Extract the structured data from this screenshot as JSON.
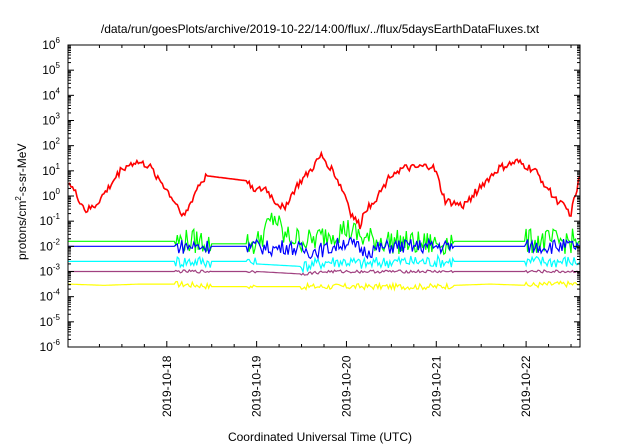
{
  "chart_data": {
    "type": "line",
    "title": "/data/run/goesPlots/archive/2019-10-22/14:00/flux/../flux/5daysEarthDataFluxes.txt",
    "xlabel": "Coordinated Universal Time (UTC)",
    "ylabel": "protons/cm²-s-sr-MeV",
    "ylabel_parts": [
      "protons/cm",
      "2",
      "-s-sr-MeV"
    ],
    "yscale": "log",
    "ylim_exponent": [
      -6,
      6
    ],
    "ytick_base": "10",
    "ytick_exponents": [
      "-6",
      "-5",
      "-4",
      "-3",
      "-2",
      "-1",
      "0",
      "1",
      "2",
      "3",
      "4",
      "5",
      "6"
    ],
    "xlim_days": [
      16.9,
      22.6
    ],
    "xticks": [
      {
        "label": "2019-10-18",
        "day": 18
      },
      {
        "label": "2019-10-19",
        "day": 19
      },
      {
        "label": "2019-10-20",
        "day": 20
      },
      {
        "label": "2019-10-21",
        "day": 21
      },
      {
        "label": "2019-10-22",
        "day": 22
      }
    ],
    "grid": false,
    "series": [
      {
        "color": "#ffff00",
        "x": [
          16.9,
          17.3,
          17.7,
          18.1,
          18.4,
          18.5,
          18.9,
          19.0,
          19.5,
          19.8,
          20.0,
          20.2,
          20.5,
          20.8,
          21.0,
          21.2,
          21.6,
          22.0,
          22.3,
          22.6
        ],
        "y": [
          -3.5,
          -3.55,
          -3.5,
          -3.5,
          -3.55,
          -3.6,
          -3.6,
          -3.6,
          -3.6,
          -3.6,
          -3.6,
          -3.6,
          -3.6,
          -3.6,
          -3.6,
          -3.55,
          -3.5,
          -3.55,
          -3.5,
          -3.5
        ]
      },
      {
        "color": "#00ffff",
        "x": [
          16.9,
          17.3,
          17.7,
          18.1,
          18.4,
          18.5,
          18.9,
          19.0,
          19.5,
          19.8,
          20.0,
          20.2,
          20.5,
          20.8,
          21.0,
          21.2,
          21.6,
          22.0,
          22.3,
          22.6
        ],
        "y": [
          -2.6,
          -2.6,
          -2.6,
          -2.6,
          -2.6,
          -2.6,
          -2.6,
          -2.7,
          -2.8,
          -2.6,
          -2.6,
          -2.7,
          -2.6,
          -2.6,
          -2.6,
          -2.6,
          -2.6,
          -2.6,
          -2.6,
          -2.6
        ]
      },
      {
        "color": "#00ff00",
        "x": [
          16.9,
          17.3,
          17.7,
          18.1,
          18.4,
          18.5,
          18.9,
          19.0,
          19.2,
          19.3,
          19.6,
          19.8,
          20.0,
          20.2,
          20.5,
          20.8,
          21.0,
          21.2,
          21.6,
          22.0,
          22.3,
          22.6
        ],
        "y": [
          -1.8,
          -1.8,
          -1.8,
          -1.8,
          -1.8,
          -1.9,
          -1.9,
          -1.9,
          -0.8,
          -1.6,
          -1.8,
          -1.5,
          -1.3,
          -1.7,
          -1.8,
          -1.9,
          -1.9,
          -1.8,
          -1.8,
          -1.8,
          -1.8,
          -1.8
        ]
      },
      {
        "color": "#0000ff",
        "x": [
          16.9,
          17.3,
          17.7,
          18.1,
          18.4,
          18.5,
          18.9,
          19.0,
          19.2,
          19.3,
          19.6,
          19.8,
          20.0,
          20.2,
          20.5,
          20.8,
          21.0,
          21.2,
          21.6,
          22.0,
          22.3,
          22.6
        ],
        "y": [
          -2.0,
          -2.0,
          -2.0,
          -2.0,
          -2.0,
          -2.0,
          -2.0,
          -2.0,
          -2.1,
          -2.0,
          -2.2,
          -2.1,
          -1.8,
          -2.2,
          -2.0,
          -2.0,
          -2.0,
          -2.0,
          -2.0,
          -2.0,
          -2.0,
          -2.0
        ]
      },
      {
        "color": "#a04080",
        "x": [
          16.9,
          17.3,
          17.7,
          18.1,
          18.4,
          18.5,
          18.9,
          19.0,
          19.5,
          19.8,
          20.0,
          20.2,
          20.5,
          20.8,
          21.0,
          21.2,
          21.6,
          22.0,
          22.3,
          22.6
        ],
        "y": [
          -3.0,
          -3.0,
          -3.0,
          -3.0,
          -3.0,
          -3.0,
          -3.0,
          -3.0,
          -3.1,
          -3.0,
          -3.0,
          -3.0,
          -3.0,
          -3.0,
          -3.0,
          -3.0,
          -3.0,
          -3.0,
          -3.0,
          -3.0
        ]
      },
      {
        "color": "#ff0000",
        "x": [
          16.9,
          17.0,
          17.1,
          17.2,
          17.35,
          17.5,
          17.65,
          17.8,
          17.95,
          18.1,
          18.2,
          18.25,
          18.35,
          18.45,
          18.9,
          19.0,
          19.1,
          19.2,
          19.3,
          19.45,
          19.6,
          19.72,
          19.85,
          20.0,
          20.05,
          20.15,
          20.2,
          20.35,
          20.5,
          20.65,
          20.75,
          20.95,
          21.0,
          21.05,
          21.1,
          21.2,
          21.3,
          21.5,
          21.7,
          21.9,
          22.1,
          22.3,
          22.5,
          22.6
        ],
        "y": [
          0.6,
          0.0,
          -0.6,
          -0.4,
          0.3,
          1.1,
          1.35,
          1.2,
          0.5,
          -0.3,
          -0.8,
          -0.4,
          0.4,
          0.8,
          0.6,
          0.2,
          0.3,
          -0.2,
          -0.5,
          0.4,
          1.0,
          1.6,
          1.0,
          -0.1,
          -0.7,
          -1.2,
          -0.6,
          0.0,
          0.9,
          1.1,
          1.1,
          1.2,
          0.9,
          0.3,
          -0.2,
          -0.3,
          -0.4,
          0.4,
          1.1,
          1.35,
          1.0,
          0.0,
          -0.7,
          0.8
        ]
      }
    ]
  }
}
